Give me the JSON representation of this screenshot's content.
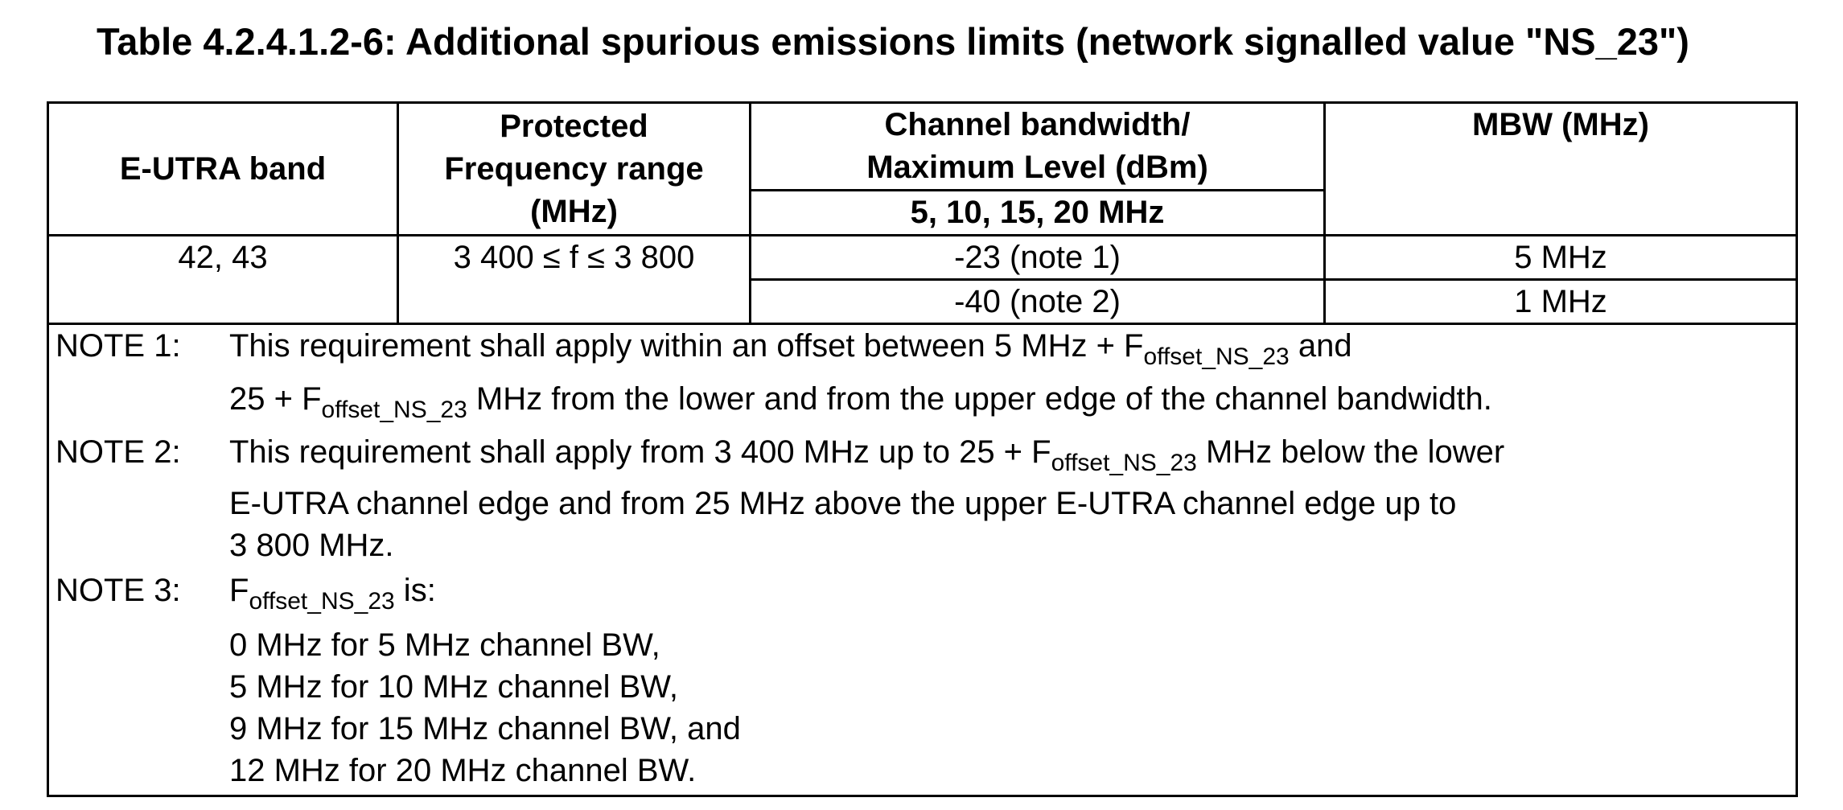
{
  "title": "Table 4.2.4.1.2-6: Additional spurious emissions limits (network signalled value \"NS_23\")",
  "table": {
    "headers": {
      "band": "E-UTRA band",
      "protected_line1": "Protected",
      "protected_line2": "Frequency range",
      "protected_line3": "(MHz)",
      "cbw_line1": "Channel bandwidth/",
      "cbw_line2": "Maximum Level (dBm)",
      "cbw_sub": "5, 10, 15, 20 MHz",
      "mbw": "MBW (MHz)"
    },
    "rows": [
      {
        "band": "42, 43",
        "range": "3 400 ≤ f ≤ 3 800",
        "levels": [
          {
            "level": "-23 (note 1)",
            "mbw": "5 MHz"
          },
          {
            "level": "-40 (note 2)",
            "mbw": "1 MHz"
          }
        ]
      }
    ]
  },
  "notes": {
    "n1": {
      "label": "NOTE 1:",
      "l1a": "This requirement shall apply within an offset between 5 MHz + F",
      "l1sub": "offset_NS_23",
      "l1b": " and",
      "l2a": "25 + F",
      "l2sub": "offset_NS_23",
      "l2b": " MHz from the lower and from the upper edge of the channel bandwidth."
    },
    "n2": {
      "label": "NOTE 2:",
      "l1a": "This requirement shall apply from 3 400 MHz up to 25 + F",
      "l1sub": "offset_NS_23",
      "l1b": " MHz below the lower",
      "l2": "E-UTRA channel edge and from 25 MHz above the upper E-UTRA channel edge up to",
      "l3": "3 800 MHz."
    },
    "n3": {
      "label": "NOTE 3:",
      "l1a": "F",
      "l1sub": "offset_NS_23",
      "l1b": " is:",
      "items": [
        "0 MHz for 5 MHz channel BW,",
        "5 MHz for 10 MHz channel BW,",
        "9 MHz for 15 MHz channel BW, and",
        "12 MHz for 20 MHz channel BW."
      ]
    }
  }
}
